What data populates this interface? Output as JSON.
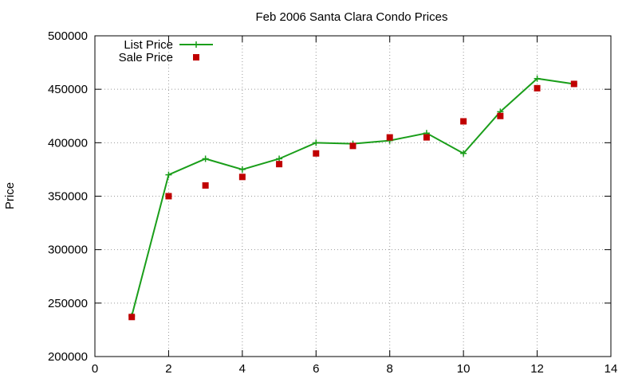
{
  "chart_data": {
    "type": "line",
    "title": "Feb 2006 Santa Clara Condo Prices",
    "xlabel": "",
    "ylabel": "Price",
    "xlim": [
      0,
      14
    ],
    "ylim": [
      200000,
      500000
    ],
    "xticks": [
      0,
      2,
      4,
      6,
      8,
      10,
      12,
      14
    ],
    "yticks": [
      200000,
      250000,
      300000,
      350000,
      400000,
      450000,
      500000
    ],
    "grid": true,
    "legend_position": "top-left",
    "series": [
      {
        "name": "List Price",
        "style": "line-with-plus-markers",
        "color": "#1a9e1a",
        "points": [
          [
            1,
            238000
          ],
          [
            2,
            370000
          ],
          [
            3,
            385000
          ],
          [
            4,
            375000
          ],
          [
            5,
            385000
          ],
          [
            6,
            400000
          ],
          [
            7,
            399000
          ],
          [
            8,
            402000
          ],
          [
            9,
            409000
          ],
          [
            10,
            390000
          ],
          [
            11,
            429000
          ],
          [
            12,
            460000
          ],
          [
            13,
            455000
          ]
        ]
      },
      {
        "name": "Sale Price",
        "style": "square-markers",
        "color": "#c00000",
        "points": [
          [
            1,
            237000
          ],
          [
            2,
            350000
          ],
          [
            3,
            360000
          ],
          [
            4,
            368000
          ],
          [
            5,
            380000
          ],
          [
            6,
            390000
          ],
          [
            7,
            397000
          ],
          [
            8,
            405000
          ],
          [
            9,
            405000
          ],
          [
            10,
            420000
          ],
          [
            11,
            425000
          ],
          [
            12,
            451000
          ],
          [
            13,
            455000
          ]
        ]
      }
    ]
  }
}
